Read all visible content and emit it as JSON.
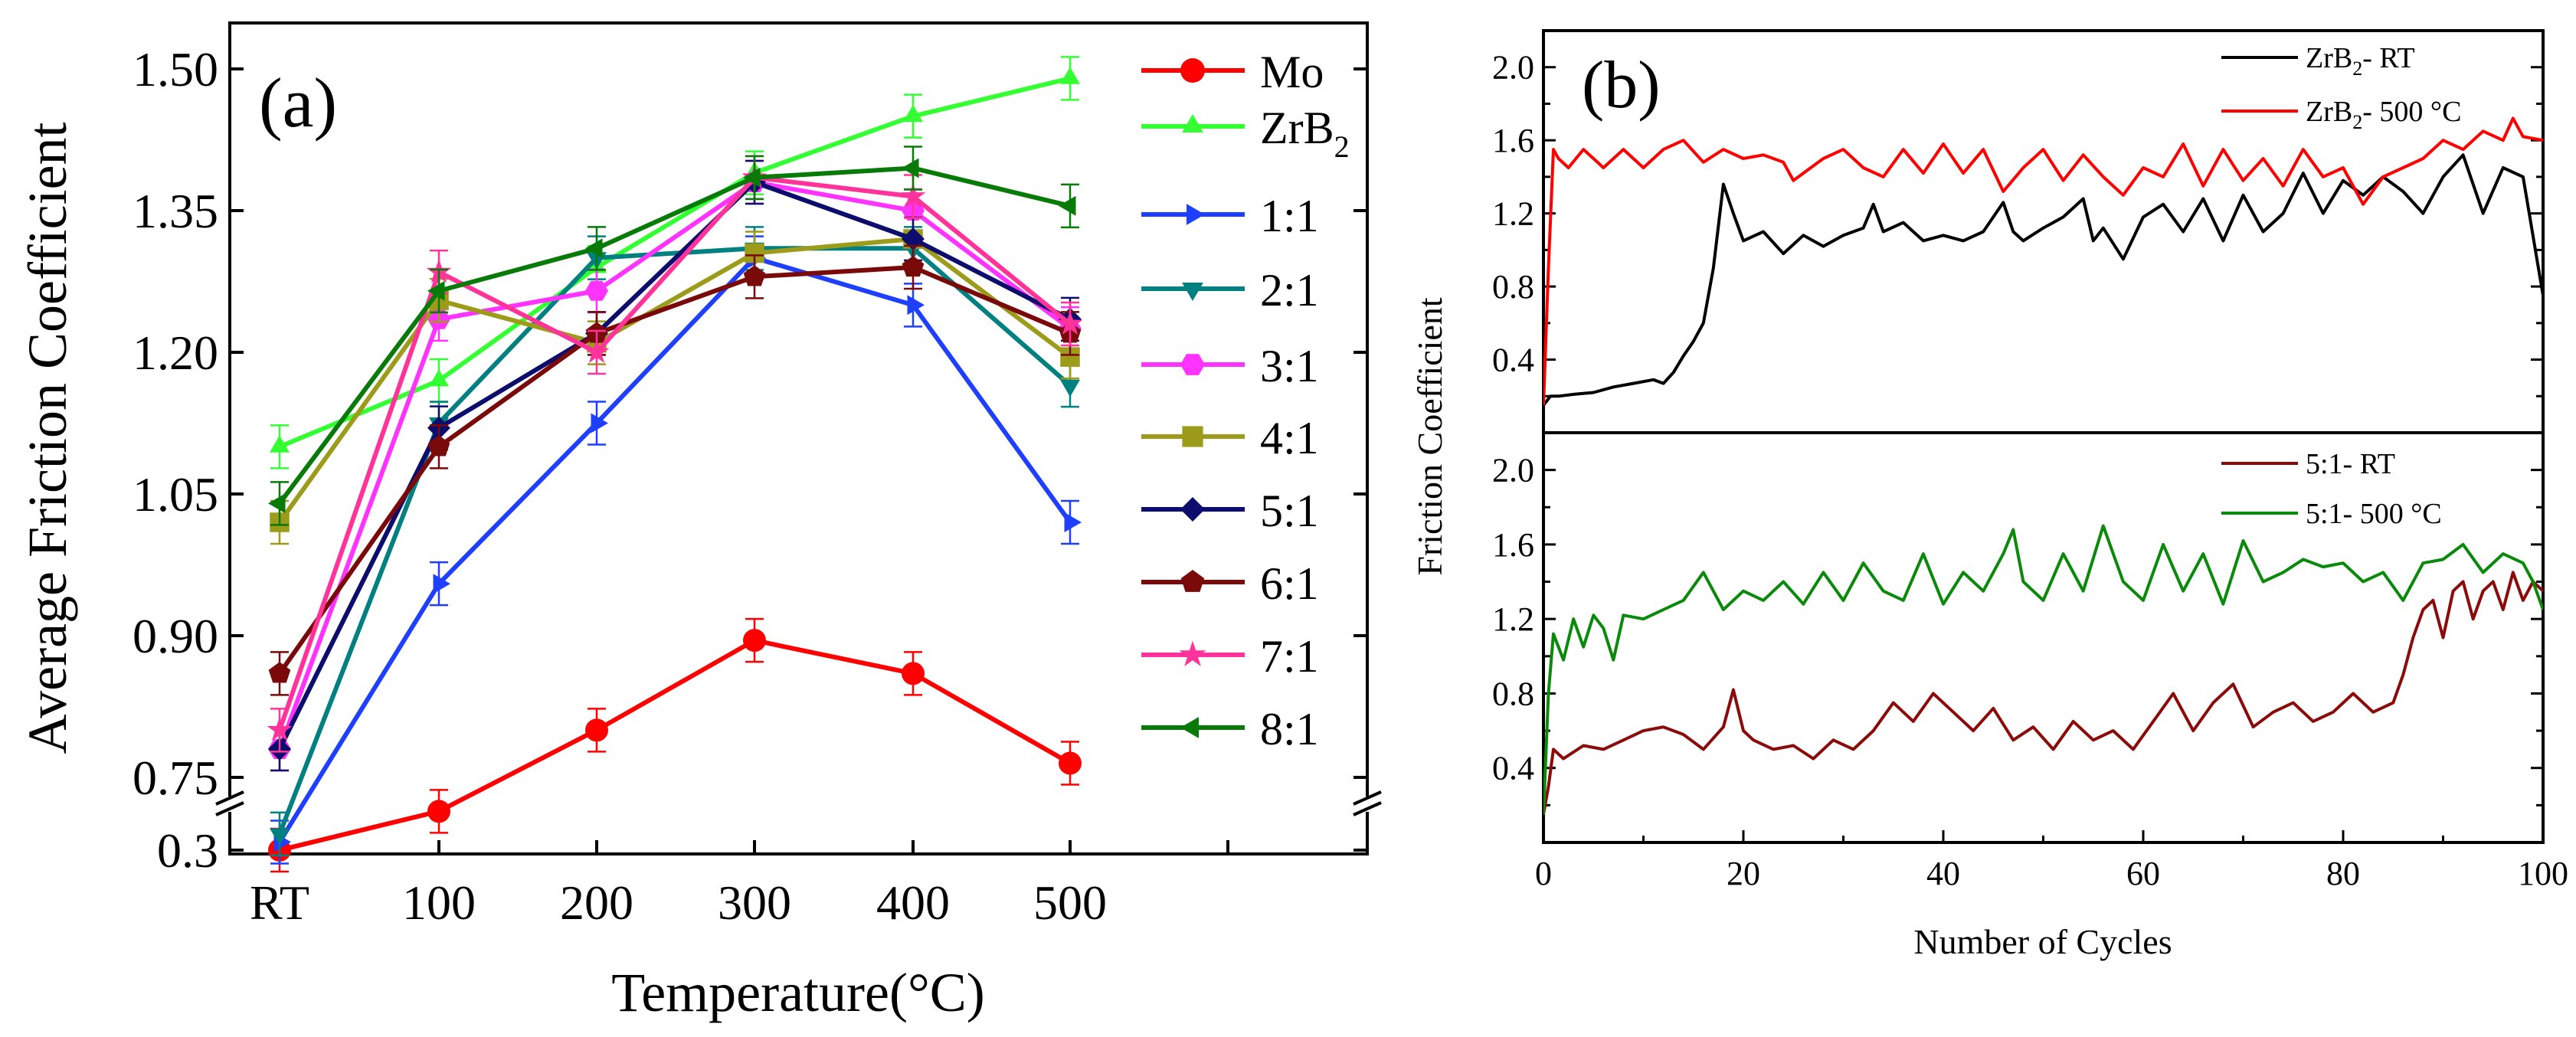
{
  "chart_data": [
    {
      "type": "line",
      "panel_label": "(a)",
      "xlabel": "Temperature(°C)",
      "ylabel": "Average Friction Coefficient",
      "categories": [
        "RT",
        "100",
        "200",
        "300",
        "400",
        "500"
      ],
      "ytick_labels": [
        "0.3",
        "0.75",
        "0.90",
        "1.05",
        "1.20",
        "1.35",
        "1.50"
      ],
      "axis_break": "between 0.3 and 0.75",
      "series": [
        {
          "name": "Mo",
          "color": "#ff0000",
          "marker": "circle",
          "values": [
            0.3,
            0.54,
            0.8,
            0.895,
            0.86,
            0.765
          ]
        },
        {
          "name": "ZrB2",
          "legend_main": "ZrB",
          "legend_sub": "2",
          "color": "#33ff33",
          "marker": "triangle-up",
          "values": [
            1.1,
            1.17,
            1.29,
            1.39,
            1.45,
            1.49
          ]
        },
        {
          "name": "1:1",
          "color": "#1f3fff",
          "marker": "triangle-right",
          "values": [
            0.35,
            0.955,
            1.125,
            1.3,
            1.25,
            1.02
          ]
        },
        {
          "name": "2:1",
          "color": "#008080",
          "marker": "triangle-down",
          "values": [
            0.4,
            1.125,
            1.3,
            1.31,
            1.31,
            1.165
          ]
        },
        {
          "name": "3:1",
          "color": "#ff33ff",
          "marker": "hexagon",
          "values": [
            0.78,
            1.235,
            1.265,
            1.38,
            1.35,
            1.225
          ]
        },
        {
          "name": "4:1",
          "color": "#9c9c1a",
          "marker": "square",
          "values": [
            1.02,
            1.255,
            1.21,
            1.305,
            1.32,
            1.195
          ]
        },
        {
          "name": "5:1",
          "color": "#0d0d6e",
          "marker": "diamond",
          "values": [
            0.78,
            1.12,
            1.22,
            1.38,
            1.32,
            1.235
          ]
        },
        {
          "name": "6:1",
          "color": "#7a0a0a",
          "marker": "pentagon",
          "values": [
            0.86,
            1.1,
            1.22,
            1.28,
            1.29,
            1.22
          ]
        },
        {
          "name": "7:1",
          "color": "#ff3399",
          "marker": "star",
          "values": [
            0.8,
            1.285,
            1.2,
            1.385,
            1.365,
            1.23
          ]
        },
        {
          "name": "8:1",
          "color": "#087a08",
          "marker": "triangle-left",
          "values": [
            1.04,
            1.265,
            1.31,
            1.385,
            1.395,
            1.355
          ]
        }
      ]
    },
    {
      "type": "line",
      "panel_label": "(b)",
      "xlabel": "Number of Cycles",
      "ylabel": "Friction Coefficient",
      "xlim": [
        0,
        100
      ],
      "xtick_labels": [
        "0",
        "20",
        "40",
        "60",
        "80",
        "100"
      ],
      "ylim": [
        0,
        2.2
      ],
      "ytick_labels": [
        "0.4",
        "0.8",
        "1.2",
        "1.6",
        "2.0"
      ],
      "panels": [
        {
          "series": [
            {
              "name": "ZrB2- RT",
              "legend_main": "ZrB",
              "legend_sub": "2",
              "legend_rest": "- RT",
              "color": "#000000",
              "x": [
                0,
                0.7,
                1.5,
                3,
                5,
                7,
                9,
                11,
                12,
                13,
                14,
                15,
                16,
                17,
                18,
                19,
                20,
                22,
                24,
                26,
                28,
                30,
                32,
                33,
                34,
                36,
                38,
                40,
                42,
                44,
                46,
                47,
                48,
                50,
                52,
                54,
                55,
                56,
                58,
                60,
                62,
                64,
                66,
                68,
                70,
                72,
                74,
                76,
                78,
                80,
                82,
                84,
                86,
                88,
                90,
                92,
                94,
                96,
                98,
                100
              ],
              "y": [
                0.15,
                0.2,
                0.2,
                0.21,
                0.22,
                0.25,
                0.27,
                0.29,
                0.27,
                0.33,
                0.42,
                0.5,
                0.6,
                0.9,
                1.36,
                1.2,
                1.05,
                1.1,
                0.98,
                1.08,
                1.02,
                1.08,
                1.12,
                1.25,
                1.1,
                1.15,
                1.05,
                1.08,
                1.05,
                1.1,
                1.26,
                1.1,
                1.05,
                1.12,
                1.18,
                1.28,
                1.05,
                1.12,
                0.95,
                1.18,
                1.25,
                1.1,
                1.28,
                1.05,
                1.3,
                1.1,
                1.2,
                1.42,
                1.2,
                1.38,
                1.3,
                1.4,
                1.32,
                1.2,
                1.4,
                1.52,
                1.2,
                1.45,
                1.4,
                0.75
              ]
            },
            {
              "name": "ZrB2- 500 °C",
              "legend_main": "ZrB",
              "legend_sub": "2",
              "legend_rest": "- 500 °C",
              "color": "#ff0000",
              "x": [
                0,
                0.5,
                1,
                1.5,
                2.5,
                4,
                5,
                6,
                8,
                10,
                12,
                14,
                16,
                18,
                20,
                22,
                24,
                25,
                26,
                28,
                30,
                32,
                34,
                36,
                38,
                40,
                42,
                44,
                46,
                48,
                50,
                52,
                54,
                56,
                58,
                60,
                62,
                64,
                66,
                68,
                70,
                72,
                74,
                76,
                78,
                80,
                82,
                84,
                86,
                88,
                90,
                92,
                94,
                96,
                97,
                98,
                100
              ],
              "y": [
                0.15,
                0.9,
                1.55,
                1.5,
                1.45,
                1.55,
                1.5,
                1.45,
                1.55,
                1.45,
                1.55,
                1.6,
                1.48,
                1.55,
                1.5,
                1.52,
                1.48,
                1.38,
                1.42,
                1.5,
                1.55,
                1.45,
                1.4,
                1.55,
                1.42,
                1.58,
                1.42,
                1.55,
                1.32,
                1.45,
                1.55,
                1.38,
                1.52,
                1.4,
                1.3,
                1.45,
                1.4,
                1.58,
                1.35,
                1.55,
                1.38,
                1.5,
                1.35,
                1.55,
                1.4,
                1.45,
                1.25,
                1.4,
                1.45,
                1.5,
                1.6,
                1.55,
                1.65,
                1.6,
                1.72,
                1.62,
                1.6
              ]
            }
          ]
        },
        {
          "series": [
            {
              "name": "5:1- RT",
              "color": "#8b0a0a",
              "x": [
                0,
                0.5,
                1,
                2,
                4,
                6,
                8,
                10,
                12,
                14,
                16,
                18,
                19,
                20,
                21,
                23,
                25,
                27,
                29,
                31,
                33,
                35,
                37,
                39,
                41,
                43,
                45,
                47,
                49,
                51,
                53,
                55,
                57,
                59,
                61,
                63,
                65,
                67,
                69,
                71,
                73,
                75,
                77,
                79,
                81,
                83,
                85,
                86,
                87,
                88,
                89,
                90,
                91,
                92,
                93,
                94,
                95,
                96,
                97,
                98,
                99,
                100
              ],
              "y": [
                0.15,
                0.3,
                0.5,
                0.45,
                0.52,
                0.5,
                0.55,
                0.6,
                0.62,
                0.58,
                0.5,
                0.62,
                0.82,
                0.6,
                0.55,
                0.5,
                0.52,
                0.45,
                0.55,
                0.5,
                0.6,
                0.75,
                0.65,
                0.8,
                0.7,
                0.6,
                0.72,
                0.55,
                0.62,
                0.5,
                0.65,
                0.55,
                0.6,
                0.5,
                0.65,
                0.8,
                0.6,
                0.75,
                0.85,
                0.62,
                0.7,
                0.75,
                0.65,
                0.7,
                0.8,
                0.7,
                0.75,
                0.9,
                1.1,
                1.25,
                1.3,
                1.1,
                1.35,
                1.4,
                1.2,
                1.35,
                1.4,
                1.25,
                1.45,
                1.3,
                1.4,
                1.35
              ]
            },
            {
              "name": "5:1- 500 °C",
              "color": "#0a8a0a",
              "x": [
                0,
                0.5,
                1,
                2,
                3,
                4,
                5,
                6,
                7,
                8,
                10,
                12,
                14,
                16,
                18,
                20,
                22,
                24,
                26,
                28,
                30,
                32,
                34,
                36,
                38,
                40,
                42,
                44,
                46,
                47,
                48,
                50,
                52,
                54,
                56,
                58,
                60,
                62,
                64,
                66,
                68,
                70,
                72,
                74,
                76,
                78,
                80,
                82,
                84,
                86,
                88,
                90,
                92,
                94,
                96,
                98,
                99,
                100
              ],
              "y": [
                0.15,
                0.8,
                1.12,
                0.98,
                1.2,
                1.05,
                1.22,
                1.15,
                0.98,
                1.22,
                1.2,
                1.25,
                1.3,
                1.45,
                1.25,
                1.35,
                1.3,
                1.4,
                1.28,
                1.45,
                1.3,
                1.5,
                1.35,
                1.3,
                1.55,
                1.28,
                1.45,
                1.35,
                1.55,
                1.68,
                1.4,
                1.3,
                1.55,
                1.35,
                1.7,
                1.4,
                1.3,
                1.6,
                1.35,
                1.55,
                1.28,
                1.62,
                1.4,
                1.45,
                1.52,
                1.48,
                1.5,
                1.4,
                1.45,
                1.3,
                1.5,
                1.52,
                1.6,
                1.45,
                1.55,
                1.5,
                1.4,
                1.25
              ]
            }
          ]
        }
      ]
    }
  ]
}
